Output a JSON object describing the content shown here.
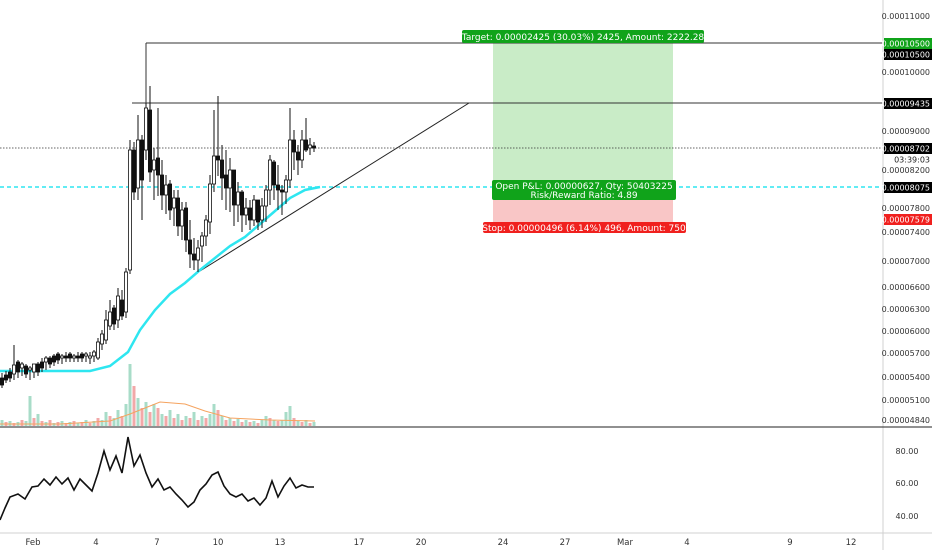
{
  "chart_data": {
    "type": "candlestick",
    "price_axis": {
      "ticks": [
        "0.00011000",
        "0.00010000",
        "0.00009000",
        "0.00008200",
        "0.00007800",
        "0.00007400",
        "0.00007000",
        "0.00006600",
        "0.00006300",
        "0.00006000",
        "0.00005700",
        "0.00005400",
        "0.00005100",
        "0.00004840"
      ]
    },
    "date_axis": {
      "ticks": [
        "Feb",
        "4",
        "7",
        "10",
        "13",
        "17",
        "20",
        "24",
        "27",
        "Mar",
        "4",
        "9",
        "12"
      ]
    },
    "price_labels": {
      "target": "0.00010500",
      "target2": "0.00010500",
      "resistance": "0.00009435",
      "last": "0.00008702",
      "countdown": "03:39:03",
      "entry": "0.00008075",
      "stop": "0.00007579"
    },
    "position": {
      "target_text": "Target: 0.00002425 (30.03%) 2425, Amount: 2222.28",
      "pnl_text": "Open P&L: 0.00000627, Qty: 50403225",
      "rr_text": "Risk/Reward Ratio: 4.89",
      "stop_text": "Stop: 0.00000496 (6.14%) 496, Amount: 750"
    },
    "rsi_axis": {
      "ticks": [
        "80.00",
        "60.00",
        "40.00"
      ]
    },
    "colors": {
      "up": "#26a69a",
      "down": "#ef5350",
      "ma": "#2ee6f0",
      "profit_zone": "#c9ecc7",
      "loss_zone": "#f9c6c6",
      "target_badge": "#10a31a",
      "stop_badge": "#f0201e"
    }
  }
}
